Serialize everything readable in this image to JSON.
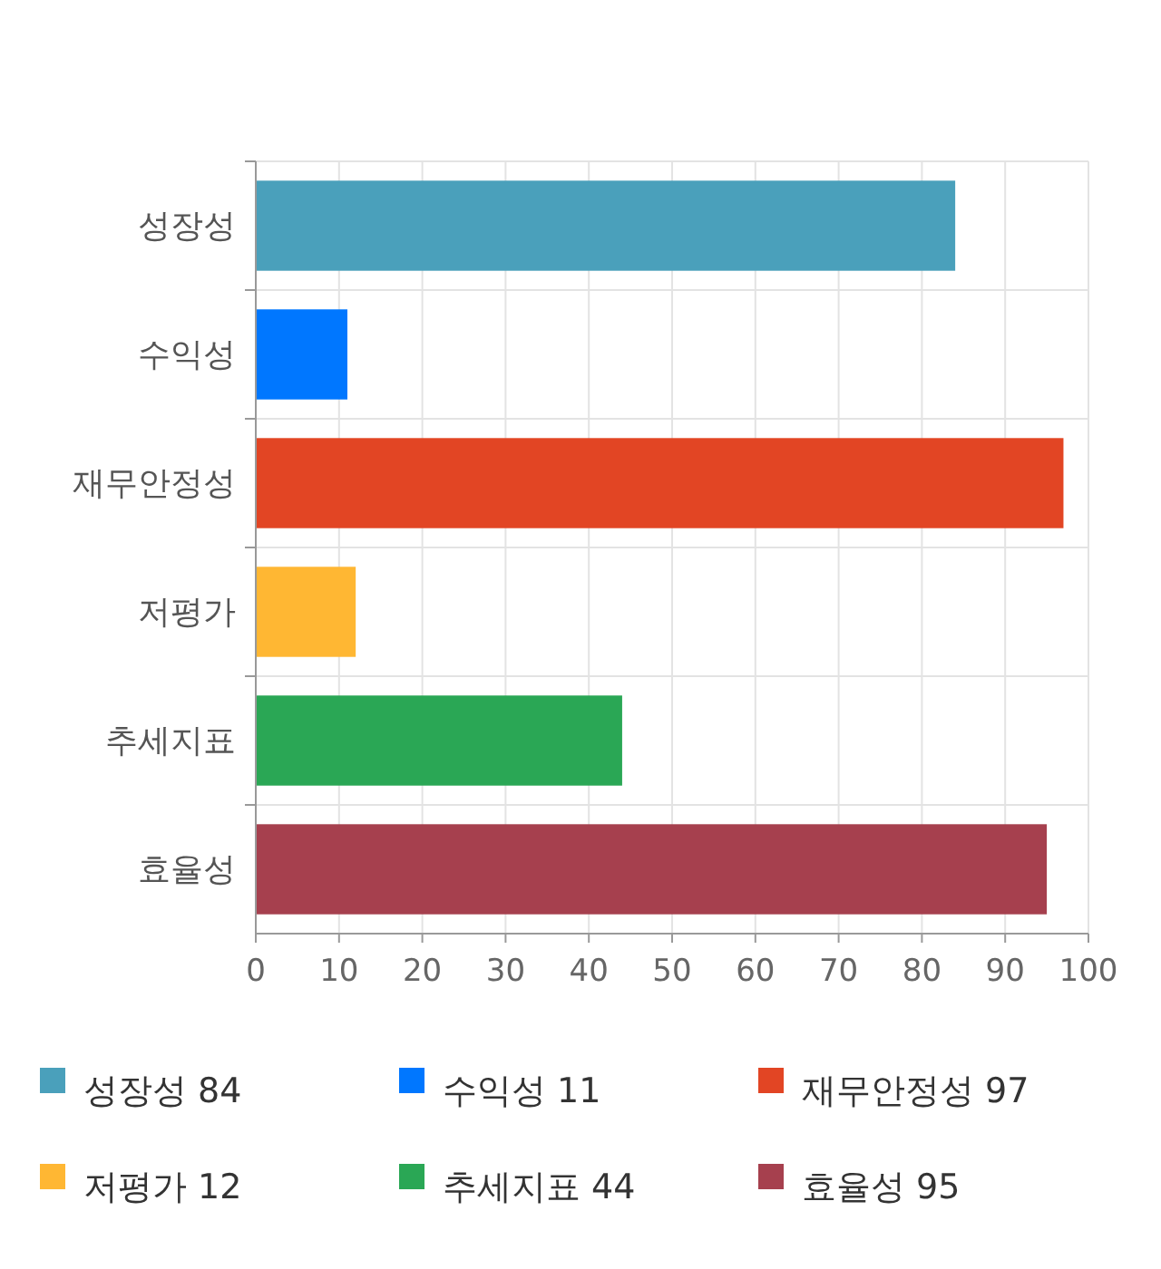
{
  "chart_data": {
    "type": "bar",
    "orientation": "horizontal",
    "stacked": true,
    "categories": [
      "성장성",
      "수익성",
      "재무안정성",
      "저평가",
      "추세지표",
      "효율성"
    ],
    "series": [
      {
        "name": "성장성 84",
        "color": "#4aa0bb",
        "values": [
          84,
          null,
          null,
          null,
          null,
          null
        ]
      },
      {
        "name": "수익성 11",
        "color": "#0077ff",
        "values": [
          null,
          11,
          null,
          null,
          null,
          null
        ]
      },
      {
        "name": "재무안정성 97",
        "color": "#e24524",
        "values": [
          null,
          null,
          97,
          null,
          null,
          null
        ]
      },
      {
        "name": "저평가 12",
        "color": "#ffb733",
        "values": [
          null,
          null,
          null,
          12,
          null,
          null
        ]
      },
      {
        "name": "추세지표 44",
        "color": "#2aa755",
        "values": [
          null,
          null,
          null,
          null,
          44,
          null
        ]
      },
      {
        "name": "효율성 95",
        "color": "#a6404e",
        "values": [
          null,
          null,
          null,
          null,
          null,
          95
        ]
      }
    ],
    "xlim": [
      0,
      100
    ],
    "xticks": [
      0,
      10,
      20,
      30,
      40,
      50,
      60,
      70,
      80,
      90,
      100
    ],
    "grid": true,
    "legend": "bottom"
  }
}
